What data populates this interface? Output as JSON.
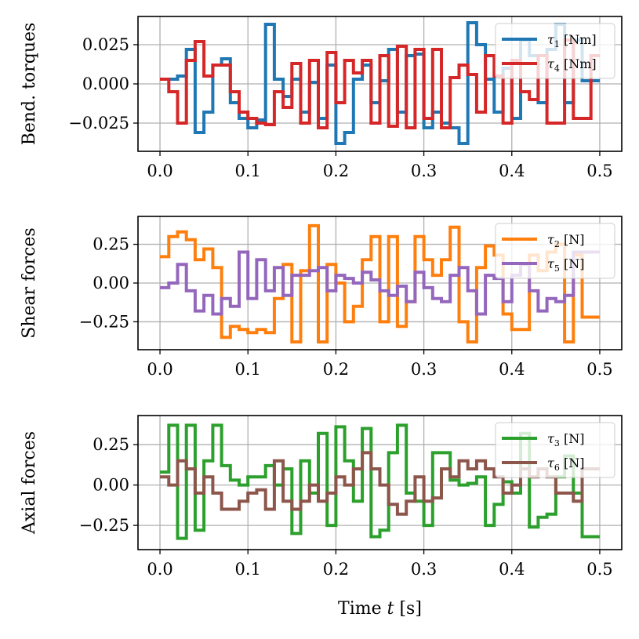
{
  "chart_data": [
    {
      "type": "line",
      "ylabel": "Bend. torques",
      "xlabel": "",
      "xlim": [
        -0.025,
        0.525
      ],
      "ylim": [
        -0.043,
        0.043
      ],
      "xticks": [
        0.0,
        0.1,
        0.2,
        0.3,
        0.4,
        0.5
      ],
      "xtick_labels": [
        "0.0",
        "0.1",
        "0.2",
        "0.3",
        "0.4",
        "0.5"
      ],
      "yticks": [
        0.025,
        0.0,
        -0.025
      ],
      "ytick_labels": [
        "0.025",
        "0.000",
        "−0.025"
      ],
      "grid": true,
      "legend_position": "top-right",
      "series": [
        {
          "name": "τ1 [Nm]",
          "symbol": "τ",
          "sub": "1",
          "unit": "[Nm]",
          "color": "#1f77b4",
          "x": [
            0.0,
            0.01,
            0.02,
            0.03,
            0.04,
            0.05,
            0.06,
            0.07,
            0.08,
            0.09,
            0.1,
            0.11,
            0.12,
            0.13,
            0.14,
            0.15,
            0.16,
            0.17,
            0.18,
            0.19,
            0.2,
            0.21,
            0.22,
            0.23,
            0.24,
            0.25,
            0.26,
            0.27,
            0.28,
            0.29,
            0.3,
            0.31,
            0.32,
            0.33,
            0.34,
            0.35,
            0.36,
            0.37,
            0.38,
            0.39,
            0.4,
            0.41,
            0.42,
            0.43,
            0.44,
            0.45,
            0.46,
            0.47,
            0.48,
            0.49,
            0.5
          ],
          "y": [
            0.003,
            0.003,
            0.005,
            0.022,
            -0.031,
            -0.018,
            0.012,
            0.016,
            -0.012,
            -0.022,
            -0.028,
            -0.023,
            0.038,
            0.003,
            -0.008,
            0.003,
            -0.018,
            0.001,
            -0.022,
            0.012,
            -0.038,
            -0.031,
            0.003,
            0.012,
            -0.012,
            0.002,
            0.022,
            -0.018,
            0.018,
            0.019,
            -0.028,
            -0.018,
            -0.025,
            -0.028,
            -0.038,
            0.039,
            0.025,
            0.003,
            -0.018,
            0.01,
            -0.022,
            0.028,
            0.018,
            -0.012,
            0.022,
            0.038,
            -0.012,
            0.028,
            0.002,
            0.002,
            0.002
          ]
        },
        {
          "name": "τ4 [Nm]",
          "symbol": "τ",
          "sub": "4",
          "unit": "[Nm]",
          "color": "#d62728",
          "x": [
            0.0,
            0.01,
            0.02,
            0.03,
            0.04,
            0.05,
            0.06,
            0.07,
            0.08,
            0.09,
            0.1,
            0.11,
            0.12,
            0.13,
            0.14,
            0.15,
            0.16,
            0.17,
            0.18,
            0.19,
            0.2,
            0.21,
            0.22,
            0.23,
            0.24,
            0.25,
            0.26,
            0.27,
            0.28,
            0.29,
            0.3,
            0.31,
            0.32,
            0.33,
            0.34,
            0.35,
            0.36,
            0.37,
            0.38,
            0.39,
            0.4,
            0.41,
            0.42,
            0.43,
            0.44,
            0.45,
            0.46,
            0.47,
            0.48,
            0.49,
            0.5
          ],
          "y": [
            0.003,
            -0.005,
            -0.025,
            0.015,
            0.027,
            0.005,
            0.012,
            0.012,
            -0.005,
            -0.018,
            -0.022,
            -0.025,
            -0.026,
            -0.005,
            -0.015,
            0.013,
            -0.025,
            0.015,
            -0.028,
            0.02,
            -0.012,
            0.015,
            0.007,
            0.015,
            -0.025,
            0.018,
            -0.027,
            0.024,
            -0.028,
            0.022,
            -0.022,
            0.022,
            -0.028,
            0.004,
            0.012,
            0.006,
            -0.018,
            0.018,
            0.005,
            -0.025,
            0.015,
            -0.005,
            -0.01,
            0.018,
            -0.025,
            -0.025,
            0.028,
            -0.022,
            -0.022,
            0.018,
            0.018
          ]
        }
      ]
    },
    {
      "type": "line",
      "ylabel": "Shear forces",
      "xlabel": "",
      "xlim": [
        -0.025,
        0.525
      ],
      "ylim": [
        -0.43,
        0.43
      ],
      "xticks": [
        0.0,
        0.1,
        0.2,
        0.3,
        0.4,
        0.5
      ],
      "xtick_labels": [
        "0.0",
        "0.1",
        "0.2",
        "0.3",
        "0.4",
        "0.5"
      ],
      "yticks": [
        0.25,
        0.0,
        -0.25
      ],
      "ytick_labels": [
        "0.25",
        "0.00",
        "−0.25"
      ],
      "grid": true,
      "legend_position": "top-right",
      "series": [
        {
          "name": "τ2 [N]",
          "symbol": "τ",
          "sub": "2",
          "unit": "[N]",
          "color": "#ff7f0e",
          "x": [
            0.0,
            0.01,
            0.02,
            0.03,
            0.04,
            0.05,
            0.06,
            0.07,
            0.08,
            0.09,
            0.1,
            0.11,
            0.12,
            0.13,
            0.14,
            0.15,
            0.16,
            0.17,
            0.18,
            0.19,
            0.2,
            0.21,
            0.22,
            0.23,
            0.24,
            0.25,
            0.26,
            0.27,
            0.28,
            0.29,
            0.3,
            0.31,
            0.32,
            0.33,
            0.34,
            0.35,
            0.36,
            0.37,
            0.38,
            0.39,
            0.4,
            0.41,
            0.42,
            0.43,
            0.44,
            0.45,
            0.46,
            0.47,
            0.48,
            0.49,
            0.5
          ],
          "y": [
            0.17,
            0.3,
            0.33,
            0.28,
            0.15,
            0.22,
            0.1,
            -0.35,
            -0.28,
            -0.3,
            -0.32,
            -0.3,
            -0.32,
            -0.1,
            0.12,
            -0.38,
            0.08,
            0.37,
            -0.38,
            0.12,
            0.0,
            -0.25,
            -0.15,
            0.15,
            0.3,
            -0.25,
            0.3,
            -0.28,
            -0.12,
            0.3,
            0.15,
            0.05,
            0.15,
            0.36,
            -0.25,
            -0.38,
            0.1,
            0.24,
            0.18,
            -0.2,
            -0.3,
            -0.3,
            0.18,
            0.08,
            0.2,
            0.25,
            -0.38,
            0.18,
            -0.22,
            -0.22,
            -0.22
          ]
        },
        {
          "name": "τ5 [N]",
          "symbol": "τ",
          "sub": "5",
          "unit": "[N]",
          "color": "#9467bd",
          "x": [
            0.0,
            0.01,
            0.02,
            0.03,
            0.04,
            0.05,
            0.06,
            0.07,
            0.08,
            0.09,
            0.1,
            0.11,
            0.12,
            0.13,
            0.14,
            0.15,
            0.16,
            0.17,
            0.18,
            0.19,
            0.2,
            0.21,
            0.22,
            0.23,
            0.24,
            0.25,
            0.26,
            0.27,
            0.28,
            0.29,
            0.3,
            0.31,
            0.32,
            0.33,
            0.34,
            0.35,
            0.36,
            0.37,
            0.38,
            0.39,
            0.4,
            0.41,
            0.42,
            0.43,
            0.44,
            0.45,
            0.46,
            0.47,
            0.48,
            0.49,
            0.5
          ],
          "y": [
            -0.03,
            0.0,
            0.12,
            -0.05,
            -0.18,
            -0.08,
            -0.2,
            -0.1,
            -0.15,
            0.2,
            -0.1,
            0.15,
            -0.05,
            0.1,
            -0.08,
            0.05,
            0.05,
            0.08,
            0.1,
            -0.05,
            0.05,
            0.03,
            0.0,
            0.07,
            0.02,
            -0.05,
            -0.08,
            -0.02,
            -0.12,
            0.07,
            -0.03,
            -0.1,
            -0.12,
            0.05,
            0.1,
            -0.05,
            -0.2,
            0.05,
            0.03,
            -0.12,
            0.05,
            0.12,
            -0.05,
            -0.18,
            -0.1,
            -0.12,
            -0.08,
            0.2,
            0.2,
            0.2,
            0.2
          ]
        }
      ]
    },
    {
      "type": "line",
      "ylabel": "Axial forces",
      "xlabel": "Time t [s]",
      "xlabel_main": "Time ",
      "xlabel_var": "t",
      "xlabel_unit": " [s]",
      "xlim": [
        -0.025,
        0.525
      ],
      "ylim": [
        -0.4,
        0.43
      ],
      "xticks": [
        0.0,
        0.1,
        0.2,
        0.3,
        0.4,
        0.5
      ],
      "xtick_labels": [
        "0.0",
        "0.1",
        "0.2",
        "0.3",
        "0.4",
        "0.5"
      ],
      "yticks": [
        0.25,
        0.0,
        -0.25
      ],
      "ytick_labels": [
        "0.25",
        "0.00",
        "−0.25"
      ],
      "grid": true,
      "legend_position": "top-right",
      "series": [
        {
          "name": "τ3 [N]",
          "symbol": "τ",
          "sub": "3",
          "unit": "[N]",
          "color": "#2ca02c",
          "x": [
            0.0,
            0.01,
            0.02,
            0.03,
            0.04,
            0.05,
            0.06,
            0.07,
            0.08,
            0.09,
            0.1,
            0.11,
            0.12,
            0.13,
            0.14,
            0.15,
            0.16,
            0.17,
            0.18,
            0.19,
            0.2,
            0.21,
            0.22,
            0.23,
            0.24,
            0.25,
            0.26,
            0.27,
            0.28,
            0.29,
            0.3,
            0.31,
            0.32,
            0.33,
            0.34,
            0.35,
            0.36,
            0.37,
            0.38,
            0.39,
            0.4,
            0.41,
            0.42,
            0.43,
            0.44,
            0.45,
            0.46,
            0.47,
            0.48,
            0.49,
            0.5
          ],
          "y": [
            0.08,
            0.37,
            -0.33,
            0.37,
            -0.28,
            0.15,
            0.37,
            0.12,
            0.03,
            0.0,
            0.05,
            0.05,
            0.12,
            0.0,
            0.1,
            -0.3,
            0.15,
            -0.05,
            0.32,
            -0.25,
            0.36,
            0.15,
            -0.1,
            0.35,
            -0.32,
            -0.28,
            0.2,
            0.37,
            -0.05,
            -0.1,
            -0.25,
            0.2,
            0.2,
            0.03,
            0.0,
            0.01,
            0.05,
            -0.25,
            -0.12,
            0.02,
            -0.05,
            0.32,
            -0.26,
            -0.2,
            -0.18,
            0.05,
            0.18,
            -0.05,
            -0.32,
            -0.32,
            -0.32
          ]
        },
        {
          "name": "τ6 [N]",
          "symbol": "τ",
          "sub": "6",
          "unit": "[N]",
          "color": "#8c564b",
          "x": [
            0.0,
            0.01,
            0.02,
            0.03,
            0.04,
            0.05,
            0.06,
            0.07,
            0.08,
            0.09,
            0.1,
            0.11,
            0.12,
            0.13,
            0.14,
            0.15,
            0.16,
            0.17,
            0.18,
            0.19,
            0.2,
            0.21,
            0.22,
            0.23,
            0.24,
            0.25,
            0.26,
            0.27,
            0.28,
            0.29,
            0.3,
            0.31,
            0.32,
            0.33,
            0.34,
            0.35,
            0.36,
            0.37,
            0.38,
            0.39,
            0.4,
            0.41,
            0.42,
            0.43,
            0.44,
            0.45,
            0.46,
            0.47,
            0.48,
            0.49,
            0.5
          ],
          "y": [
            0.05,
            0.0,
            0.15,
            0.1,
            -0.05,
            0.05,
            -0.05,
            -0.15,
            -0.15,
            -0.1,
            -0.05,
            -0.03,
            -0.15,
            0.15,
            -0.1,
            -0.15,
            -0.1,
            0.0,
            -0.1,
            -0.05,
            0.05,
            0.0,
            0.1,
            0.2,
            0.1,
            0.0,
            -0.12,
            -0.18,
            -0.1,
            0.05,
            -0.1,
            -0.08,
            0.1,
            0.05,
            0.15,
            0.1,
            0.15,
            0.1,
            0.05,
            -0.05,
            0.0,
            0.1,
            0.05,
            0.1,
            0.05,
            -0.05,
            -0.05,
            -0.1,
            0.1,
            0.1,
            0.1
          ]
        }
      ]
    }
  ]
}
